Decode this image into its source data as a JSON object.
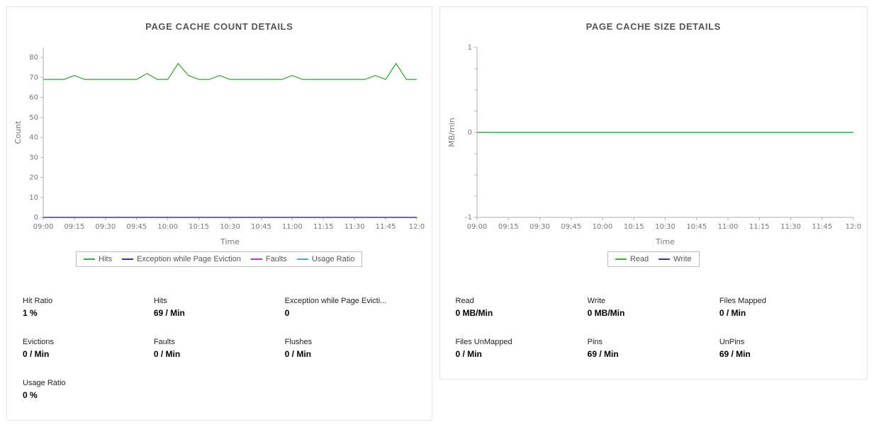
{
  "left_panel": {
    "title": "PAGE CACHE COUNT DETAILS",
    "stats": [
      {
        "label": "Hit Ratio",
        "value": "1 %"
      },
      {
        "label": "Hits",
        "value": "69 / Min"
      },
      {
        "label": "Exception while Page Evicti...",
        "value": "0"
      },
      {
        "label": "Evictions",
        "value": "0 / Min"
      },
      {
        "label": "Faults",
        "value": "0 / Min"
      },
      {
        "label": "Flushes",
        "value": "0 / Min"
      },
      {
        "label": "Usage Ratio",
        "value": "0 %"
      }
    ]
  },
  "right_panel": {
    "title": "PAGE CACHE SIZE DETAILS",
    "stats": [
      {
        "label": "Read",
        "value": "0 MB/Min"
      },
      {
        "label": "Write",
        "value": "0 MB/Min"
      },
      {
        "label": "Files Mapped",
        "value": "0 / Min"
      },
      {
        "label": "Files UnMapped",
        "value": "0 / Min"
      },
      {
        "label": "Pins",
        "value": "69 / Min"
      },
      {
        "label": "UnPins",
        "value": "69 / Min"
      }
    ]
  },
  "chart_data": [
    {
      "type": "line",
      "title": "PAGE CACHE COUNT DETAILS",
      "xlabel": "Time",
      "ylabel": "Count",
      "ylim": [
        0,
        85
      ],
      "grid": false,
      "legend_position": "bottom",
      "x": [
        "09:00",
        "09:05",
        "09:10",
        "09:15",
        "09:20",
        "09:25",
        "09:30",
        "09:35",
        "09:40",
        "09:45",
        "09:50",
        "09:55",
        "10:00",
        "10:05",
        "10:10",
        "10:15",
        "10:20",
        "10:25",
        "10:30",
        "10:35",
        "10:40",
        "10:45",
        "10:50",
        "10:55",
        "11:00",
        "11:05",
        "11:10",
        "11:15",
        "11:20",
        "11:25",
        "11:30",
        "11:35",
        "11:40",
        "11:45",
        "11:50",
        "11:55",
        "12:00"
      ],
      "xticks": [
        {
          "i": 0,
          "label": "09:00"
        },
        {
          "i": 3,
          "label": "09:15"
        },
        {
          "i": 6,
          "label": "09:30"
        },
        {
          "i": 9,
          "label": "09:45"
        },
        {
          "i": 12,
          "label": "10:00"
        },
        {
          "i": 15,
          "label": "10:15"
        },
        {
          "i": 18,
          "label": "10:30"
        },
        {
          "i": 21,
          "label": "10:45"
        },
        {
          "i": 24,
          "label": "11:00"
        },
        {
          "i": 27,
          "label": "11:15"
        },
        {
          "i": 30,
          "label": "11:30"
        },
        {
          "i": 33,
          "label": "11:45"
        },
        {
          "i": 36,
          "label": "12:0"
        }
      ],
      "yticks": [
        0,
        10,
        20,
        30,
        40,
        50,
        60,
        70,
        80
      ],
      "ytick_labels": [
        "0",
        "10",
        "20",
        "30",
        "40",
        "50",
        "60",
        "70",
        "80"
      ],
      "series": [
        {
          "name": "Hits",
          "color": "#3aad3a",
          "values": [
            69,
            69,
            69,
            71,
            69,
            69,
            69,
            69,
            69,
            69,
            72,
            69,
            69,
            77,
            71,
            69,
            69,
            71,
            69,
            69,
            69,
            69,
            69,
            69,
            71,
            69,
            69,
            69,
            69,
            69,
            69,
            69,
            71,
            69,
            77,
            69,
            69
          ]
        },
        {
          "name": "Exception while Page Eviction",
          "color": "#3333aa",
          "constant": 0
        },
        {
          "name": "Faults",
          "color": "#bb33bb",
          "constant": 0
        },
        {
          "name": "Usage Ratio",
          "color": "#33bbbb",
          "constant": 0
        }
      ]
    },
    {
      "type": "line",
      "title": "PAGE CACHE SIZE DETAILS",
      "xlabel": "Time",
      "ylabel": "MB/min",
      "ylim": [
        -1,
        1
      ],
      "grid": false,
      "legend_position": "bottom",
      "x": [
        "09:00",
        "09:05",
        "09:10",
        "09:15",
        "09:20",
        "09:25",
        "09:30",
        "09:35",
        "09:40",
        "09:45",
        "09:50",
        "09:55",
        "10:00",
        "10:05",
        "10:10",
        "10:15",
        "10:20",
        "10:25",
        "10:30",
        "10:35",
        "10:40",
        "10:45",
        "10:50",
        "10:55",
        "11:00",
        "11:05",
        "11:10",
        "11:15",
        "11:20",
        "11:25",
        "11:30",
        "11:35",
        "11:40",
        "11:45",
        "11:50",
        "11:55",
        "12:00"
      ],
      "xticks": [
        {
          "i": 0,
          "label": "09:00"
        },
        {
          "i": 3,
          "label": "09:15"
        },
        {
          "i": 6,
          "label": "09:30"
        },
        {
          "i": 9,
          "label": "09:45"
        },
        {
          "i": 12,
          "label": "10:00"
        },
        {
          "i": 15,
          "label": "10:15"
        },
        {
          "i": 18,
          "label": "10:30"
        },
        {
          "i": 21,
          "label": "10:45"
        },
        {
          "i": 24,
          "label": "11:00"
        },
        {
          "i": 27,
          "label": "11:15"
        },
        {
          "i": 30,
          "label": "11:30"
        },
        {
          "i": 33,
          "label": "11:45"
        },
        {
          "i": 36,
          "label": "12:0"
        }
      ],
      "yticks": [
        -1,
        -0.75,
        -0.5,
        -0.25,
        0,
        0.25,
        0.5,
        0.75,
        1
      ],
      "ytick_labels": [
        "-1",
        "",
        "",
        "",
        "0",
        "",
        "",
        "",
        "1"
      ],
      "series": [
        {
          "name": "Read",
          "color": "#3aad3a",
          "constant": 0
        },
        {
          "name": "Write",
          "color": "#3333aa",
          "constant": 0
        }
      ]
    }
  ]
}
